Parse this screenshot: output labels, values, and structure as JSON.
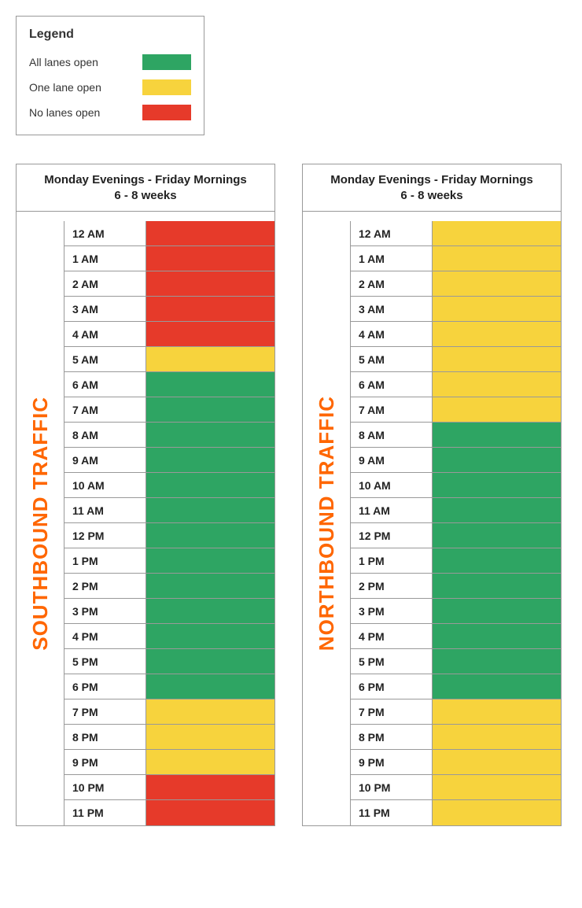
{
  "legend": {
    "title": "Legend",
    "items": [
      {
        "label": "All lanes open",
        "color": "#2ea563"
      },
      {
        "label": "One lane open",
        "color": "#f7d33d"
      },
      {
        "label": "No lanes open",
        "color": "#e63a2a"
      }
    ]
  },
  "colors": {
    "green": "#2ea563",
    "yellow": "#f7d33d",
    "red": "#e63a2a",
    "sideLabel": "#ff6600",
    "border": "#999999"
  },
  "time_labels": [
    "12 AM",
    "1 AM",
    "2 AM",
    "3 AM",
    "4 AM",
    "5 AM",
    "6 AM",
    "7 AM",
    "8 AM",
    "9 AM",
    "10 AM",
    "11 AM",
    "12 PM",
    "1 PM",
    "2 PM",
    "3 PM",
    "4 PM",
    "5 PM",
    "6 PM",
    "7 PM",
    "8 PM",
    "9 PM",
    "10 PM",
    "11 PM"
  ],
  "tables": [
    {
      "header_line1": "Monday Evenings - Friday Mornings",
      "header_line2": "6 - 8 weeks",
      "side_label": "SOUTHBOUND TRAFFIC",
      "status": [
        "red",
        "red",
        "red",
        "red",
        "red",
        "yellow",
        "green",
        "green",
        "green",
        "green",
        "green",
        "green",
        "green",
        "green",
        "green",
        "green",
        "green",
        "green",
        "green",
        "yellow",
        "yellow",
        "yellow",
        "red",
        "red"
      ]
    },
    {
      "header_line1": "Monday Evenings - Friday Mornings",
      "header_line2": "6 - 8 weeks",
      "side_label": "NORTHBOUND TRAFFIC",
      "status": [
        "yellow",
        "yellow",
        "yellow",
        "yellow",
        "yellow",
        "yellow",
        "yellow",
        "yellow",
        "green",
        "green",
        "green",
        "green",
        "green",
        "green",
        "green",
        "green",
        "green",
        "green",
        "green",
        "yellow",
        "yellow",
        "yellow",
        "yellow",
        "yellow"
      ]
    }
  ]
}
